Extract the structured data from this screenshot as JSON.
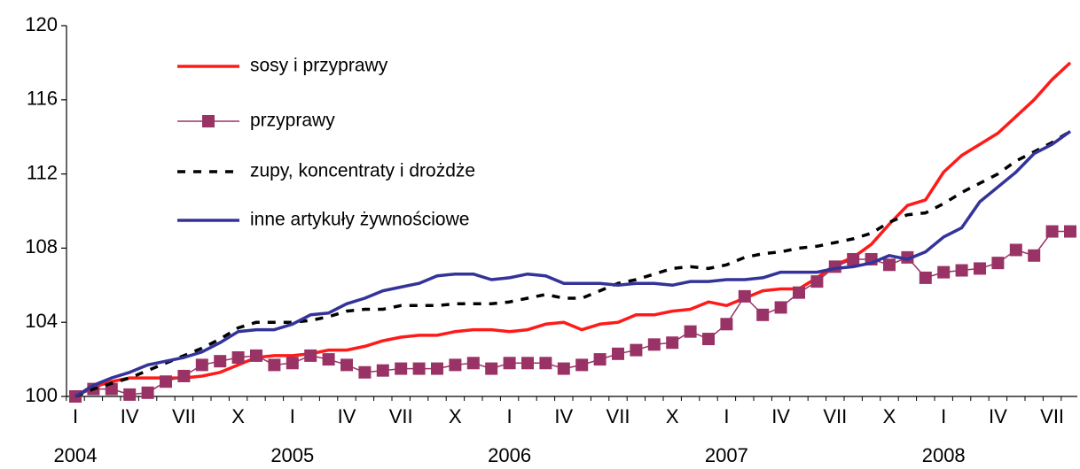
{
  "chart_data": {
    "type": "line",
    "categories": [
      "I",
      null,
      null,
      "IV",
      null,
      null,
      "VII",
      null,
      null,
      "X",
      null,
      null,
      "I",
      null,
      null,
      "IV",
      null,
      null,
      "VII",
      null,
      null,
      "X",
      null,
      null,
      "I",
      null,
      null,
      "IV",
      null,
      null,
      "VII",
      null,
      null,
      "X",
      null,
      null,
      "I",
      null,
      null,
      "IV",
      null,
      null,
      "VII",
      null,
      null,
      "X",
      null,
      null,
      "I",
      null,
      null,
      "IV",
      null,
      null,
      "VII",
      null
    ],
    "year_labels": [
      "2004",
      "2005",
      "2006",
      "2007",
      "2008"
    ],
    "ylim": [
      100,
      120
    ],
    "yticks": [
      100,
      104,
      108,
      112,
      116,
      120
    ],
    "legend": "upper left",
    "series": [
      {
        "name": "sosy i przyprawy",
        "color": "#ff1a1a",
        "style": "solid",
        "values": [
          100.0,
          100.5,
          100.8,
          101.0,
          101.0,
          101.0,
          101.0,
          101.1,
          101.3,
          101.7,
          102.1,
          102.2,
          102.2,
          102.3,
          102.5,
          102.5,
          102.7,
          103.0,
          103.2,
          103.3,
          103.3,
          103.5,
          103.6,
          103.6,
          103.5,
          103.6,
          103.9,
          104.0,
          103.6,
          103.9,
          104.0,
          104.4,
          104.4,
          104.6,
          104.7,
          105.1,
          104.9,
          105.3,
          105.7,
          105.8,
          105.8,
          106.4,
          107.1,
          107.5,
          108.2,
          109.3,
          110.3,
          110.6,
          112.1,
          113.0,
          113.6,
          114.2,
          115.1,
          116.0,
          117.1,
          118.0
        ]
      },
      {
        "name": "przyprawy",
        "color": "#993366",
        "style": "solid",
        "marker": "square",
        "values": [
          100.0,
          100.4,
          100.4,
          100.1,
          100.2,
          100.8,
          101.1,
          101.7,
          101.9,
          102.1,
          102.2,
          101.7,
          101.8,
          102.2,
          102.0,
          101.7,
          101.3,
          101.4,
          101.5,
          101.5,
          101.5,
          101.7,
          101.8,
          101.5,
          101.8,
          101.8,
          101.8,
          101.5,
          101.7,
          102.0,
          102.3,
          102.5,
          102.8,
          102.9,
          103.5,
          103.1,
          103.9,
          105.4,
          104.4,
          104.8,
          105.6,
          106.2,
          107.0,
          107.4,
          107.4,
          107.1,
          107.5,
          106.4,
          106.7,
          106.8,
          106.9,
          107.2,
          107.9,
          107.6,
          108.9,
          108.9
        ]
      },
      {
        "name": "zupy, koncentraty i drożdże",
        "color": "#000000",
        "style": "dashed",
        "values": [
          100.0,
          100.4,
          100.7,
          101.0,
          101.4,
          101.8,
          102.2,
          102.6,
          103.1,
          103.7,
          104.0,
          104.0,
          104.0,
          104.1,
          104.3,
          104.6,
          104.7,
          104.7,
          104.9,
          104.9,
          104.9,
          105.0,
          105.0,
          105.0,
          105.1,
          105.3,
          105.5,
          105.3,
          105.3,
          105.7,
          106.1,
          106.3,
          106.6,
          106.9,
          107.0,
          106.9,
          107.1,
          107.5,
          107.7,
          107.8,
          108.0,
          108.1,
          108.3,
          108.5,
          108.8,
          109.4,
          109.8,
          109.9,
          110.4,
          111.0,
          111.5,
          112.0,
          112.7,
          113.2,
          113.7,
          114.3
        ]
      },
      {
        "name": "inne artykuły żywnościowe",
        "color": "#333399",
        "style": "solid",
        "values": [
          100.0,
          100.6,
          101.0,
          101.3,
          101.7,
          101.9,
          102.1,
          102.4,
          102.9,
          103.5,
          103.6,
          103.6,
          103.9,
          104.4,
          104.5,
          105.0,
          105.3,
          105.7,
          105.9,
          106.1,
          106.5,
          106.6,
          106.6,
          106.3,
          106.4,
          106.6,
          106.5,
          106.1,
          106.1,
          106.1,
          106.0,
          106.1,
          106.1,
          106.0,
          106.2,
          106.2,
          106.3,
          106.3,
          106.4,
          106.7,
          106.7,
          106.7,
          106.9,
          107.0,
          107.2,
          107.6,
          107.4,
          107.8,
          108.6,
          109.1,
          110.5,
          111.3,
          112.1,
          113.1,
          113.6,
          114.3
        ]
      }
    ]
  }
}
